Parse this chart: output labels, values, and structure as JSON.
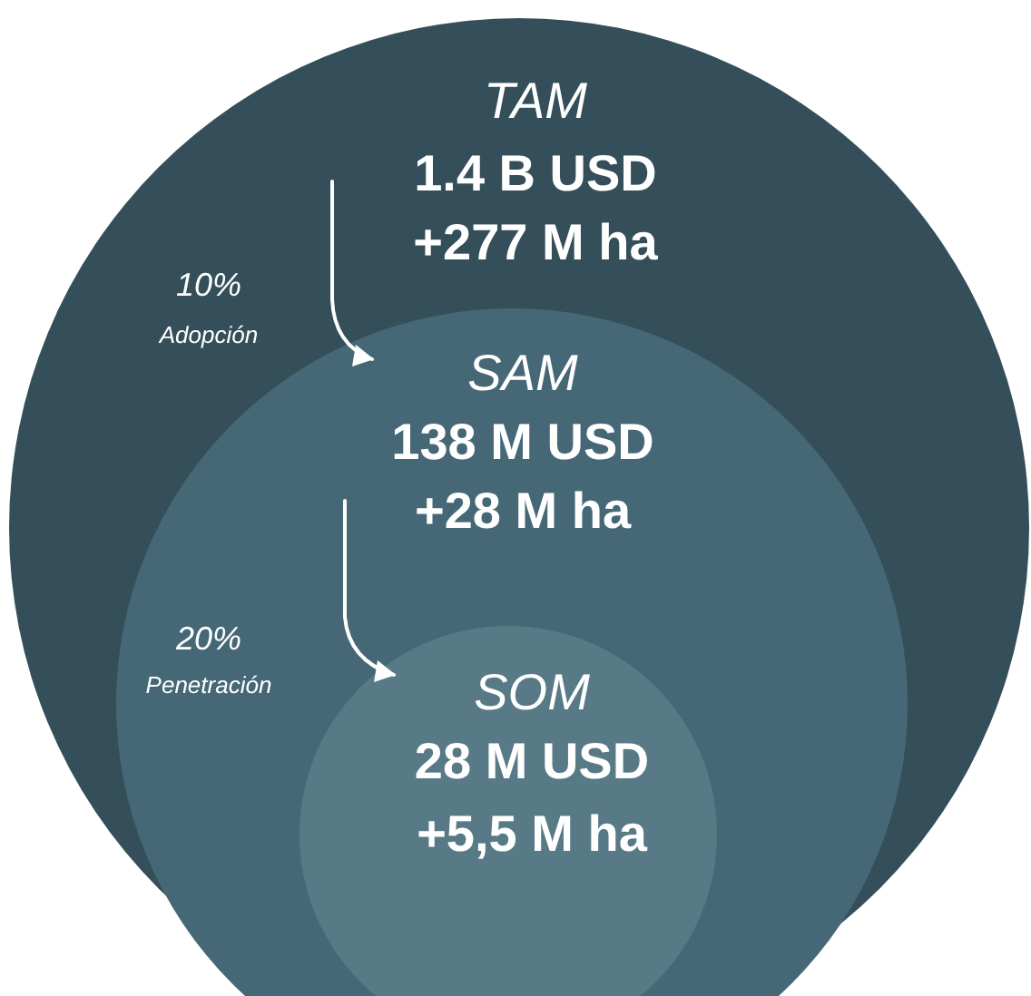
{
  "chart_data": {
    "type": "other",
    "categories": [
      "TAM",
      "SAM",
      "SOM"
    ],
    "colors": [
      "#344f59",
      "#466876",
      "#587a86"
    ],
    "series": [
      {
        "values": [
          1.4,
          138,
          28
        ],
        "value_labels": [
          "1.4 B USD",
          "138 M USD",
          "28 M USD"
        ]
      },
      {
        "values": [
          277,
          28,
          5.5
        ],
        "value_labels": [
          "+277 M ha",
          "+28 M ha",
          "+5,5 M ha"
        ]
      }
    ],
    "annotations": [
      "10%",
      "Adopción",
      "20%",
      "Penetración"
    ]
  }
}
